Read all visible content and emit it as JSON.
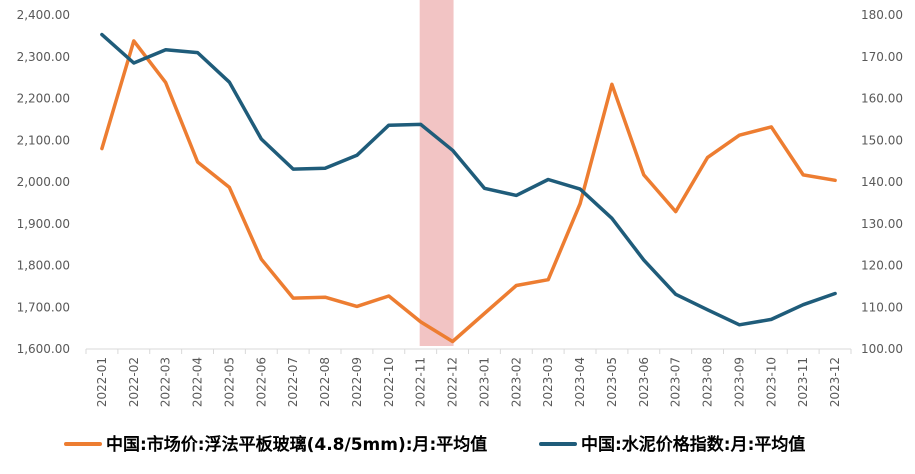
{
  "chart_data": {
    "type": "line",
    "categories": [
      "2022-01",
      "2022-02",
      "2022-03",
      "2022-04",
      "2022-05",
      "2022-06",
      "2022-07",
      "2022-08",
      "2022-09",
      "2022-10",
      "2022-11",
      "2022-12",
      "2023-01",
      "2023-02",
      "2023-03",
      "2023-04",
      "2023-05",
      "2023-06",
      "2023-07",
      "2023-08",
      "2023-09",
      "2023-10",
      "2023-11",
      "2023-12"
    ],
    "y_left": {
      "ticks": [
        "2,400.00",
        "2,300.00",
        "2,200.00",
        "2,100.00",
        "2,000.00",
        "1,900.00",
        "1,800.00",
        "1,700.00",
        "1,600.00"
      ],
      "ylim": [
        1600,
        2400
      ]
    },
    "y_right": {
      "ticks": [
        "180.00",
        "170.00",
        "160.00",
        "150.00",
        "140.00",
        "130.00",
        "120.00",
        "110.00",
        "100.00"
      ],
      "ylim": [
        100,
        180
      ]
    },
    "highlight": {
      "from": "2022-11",
      "to": "2022-12",
      "color": "#f2c4c4"
    },
    "series": [
      {
        "name": "中国:市场价:浮法平板玻璃(4.8/5mm):月:平均值",
        "axis": "left",
        "color": "#ed7d31",
        "values": [
          2080,
          2338,
          2238,
          2048,
          1987,
          1815,
          1722,
          1724,
          1702,
          1727,
          1665,
          1618,
          1685,
          1752,
          1766,
          1948,
          2234,
          2017,
          1929,
          2059,
          2112,
          2132,
          2017,
          2004
        ]
      },
      {
        "name": "中国:水泥价格指数:月:平均值",
        "axis": "right",
        "color": "#1f5c7a",
        "values": [
          175.3,
          168.5,
          171.7,
          171.0,
          163.9,
          150.3,
          143.1,
          143.3,
          146.4,
          153.6,
          153.8,
          147.6,
          138.5,
          136.8,
          140.6,
          138.3,
          131.3,
          121.3,
          113.1,
          109.4,
          105.8,
          107.1,
          110.6,
          113.3
        ]
      }
    ]
  }
}
